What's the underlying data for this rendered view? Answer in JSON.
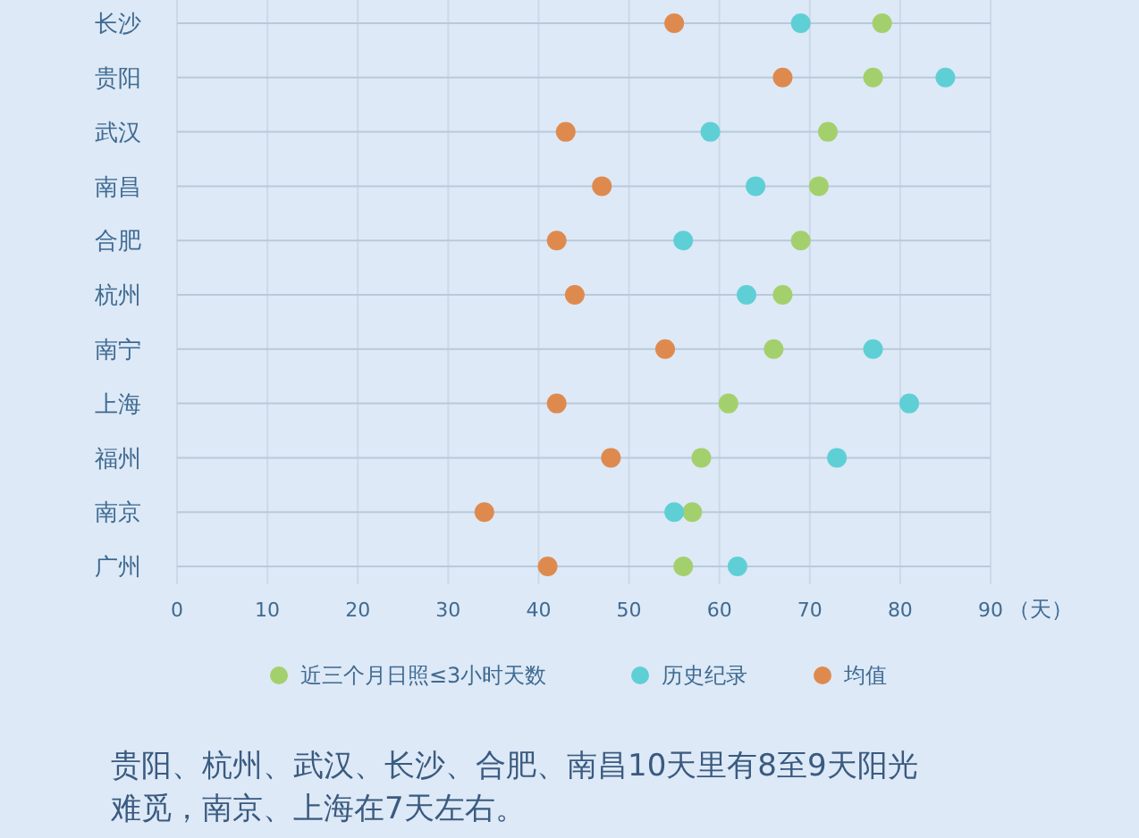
{
  "chart_data": {
    "type": "scatter",
    "orientation": "horizontal",
    "categories": [
      "长沙",
      "贵阳",
      "武汉",
      "南昌",
      "合肥",
      "杭州",
      "南宁",
      "上海",
      "福州",
      "南京",
      "广州"
    ],
    "series": [
      {
        "name": "近三个月日照≤3小时天数",
        "color": "#a3d06c",
        "values": [
          78,
          77,
          72,
          71,
          69,
          67,
          66,
          61,
          58,
          57,
          56
        ]
      },
      {
        "name": "历史纪录",
        "color": "#5fcfd6",
        "values": [
          69,
          85,
          59,
          64,
          56,
          63,
          77,
          81,
          73,
          55,
          62
        ]
      },
      {
        "name": "均值",
        "color": "#de8a4f",
        "values": [
          55,
          67,
          43,
          47,
          42,
          44,
          54,
          42,
          48,
          34,
          41
        ]
      }
    ],
    "xlim": [
      0,
      90
    ],
    "xticks": [
      0,
      10,
      20,
      30,
      40,
      50,
      60,
      70,
      80,
      90
    ],
    "xlabel": "（天）",
    "grid": true,
    "legend": "bottom",
    "marker": "circle",
    "annotations": [
      "贵阳、杭州、武汉、长沙、合肥、南昌10天里有8至9天阳光难觅，南京、上海在7天左右。"
    ]
  }
}
